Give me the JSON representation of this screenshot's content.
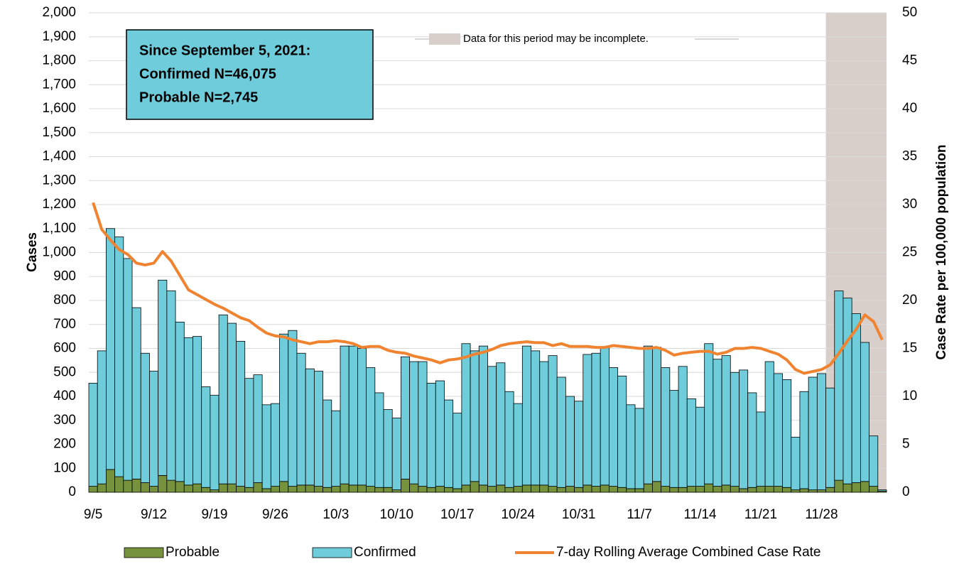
{
  "chart_data": {
    "type": "bar-line",
    "y_axis_label": "Cases",
    "y2_axis_label": "Case Rate per 100,000 population",
    "annotation": [
      "Since September 5, 2021:",
      "Confirmed N=46,075",
      "Probable N=2,745"
    ],
    "incomplete_region": {
      "label": "Data for this period may be incomplete.",
      "start": 85,
      "color": "#d9cfca"
    },
    "categories": [
      "9/5",
      null,
      null,
      null,
      null,
      null,
      null,
      "9/12",
      null,
      null,
      null,
      null,
      null,
      null,
      "9/19",
      null,
      null,
      null,
      null,
      null,
      null,
      "9/26",
      null,
      null,
      null,
      null,
      null,
      null,
      "10/3",
      null,
      null,
      null,
      null,
      null,
      null,
      "10/10",
      null,
      null,
      null,
      null,
      null,
      null,
      "10/17",
      null,
      null,
      null,
      null,
      null,
      null,
      "10/24",
      null,
      null,
      null,
      null,
      null,
      null,
      "10/31",
      null,
      null,
      null,
      null,
      null,
      null,
      "11/7",
      null,
      null,
      null,
      null,
      null,
      null,
      "11/14",
      null,
      null,
      null,
      null,
      null,
      null,
      "11/21",
      null,
      null,
      null,
      null,
      null,
      null,
      "11/28",
      null,
      null,
      null,
      null,
      null,
      null,
      null
    ],
    "series": [
      {
        "name": "Probable",
        "color": "#76923c",
        "stack": true,
        "values": [
          25,
          35,
          95,
          65,
          50,
          55,
          40,
          25,
          70,
          50,
          45,
          30,
          35,
          20,
          10,
          35,
          35,
          25,
          20,
          40,
          15,
          25,
          45,
          25,
          30,
          30,
          25,
          20,
          25,
          35,
          30,
          30,
          25,
          20,
          20,
          10,
          55,
          35,
          25,
          20,
          25,
          20,
          15,
          30,
          45,
          30,
          25,
          30,
          20,
          25,
          30,
          30,
          30,
          25,
          20,
          25,
          20,
          30,
          25,
          30,
          25,
          20,
          15,
          15,
          35,
          45,
          25,
          20,
          20,
          25,
          25,
          35,
          25,
          30,
          25,
          15,
          20,
          25,
          25,
          25,
          20,
          10,
          15,
          10,
          10,
          20,
          50,
          35,
          40,
          45,
          25,
          5
        ]
      },
      {
        "name": "Confirmed",
        "color": "#6fcddb",
        "stack": true,
        "values": [
          430,
          555,
          1005,
          1000,
          925,
          715,
          540,
          480,
          815,
          790,
          665,
          615,
          615,
          420,
          395,
          705,
          670,
          605,
          455,
          450,
          350,
          345,
          615,
          650,
          550,
          485,
          480,
          365,
          315,
          575,
          580,
          570,
          495,
          395,
          325,
          300,
          510,
          510,
          520,
          435,
          440,
          365,
          315,
          590,
          545,
          580,
          500,
          510,
          400,
          345,
          580,
          560,
          515,
          545,
          460,
          375,
          360,
          545,
          555,
          575,
          495,
          465,
          350,
          335,
          575,
          560,
          495,
          405,
          505,
          365,
          330,
          585,
          530,
          540,
          475,
          495,
          395,
          310,
          520,
          470,
          450,
          220,
          405,
          470,
          485,
          415,
          790,
          775,
          705,
          580,
          210,
          5
        ]
      },
      {
        "name": "7-day Rolling Average Combined Case Rate",
        "color": "#f0832f",
        "axis": "y2",
        "kind": "line",
        "values": [
          30.2,
          27.4,
          26.3,
          25.3,
          24.8,
          23.9,
          23.7,
          23.9,
          25.1,
          24.1,
          22.6,
          21.1,
          20.6,
          20.1,
          19.6,
          19.2,
          18.7,
          18.2,
          17.9,
          17.2,
          16.6,
          16.3,
          16.2,
          15.9,
          15.7,
          15.5,
          15.7,
          15.7,
          15.8,
          15.7,
          15.5,
          15.1,
          15.2,
          15.2,
          14.8,
          14.6,
          14.5,
          14.2,
          14.0,
          13.8,
          13.5,
          13.8,
          13.9,
          14.1,
          14.4,
          14.6,
          14.9,
          15.3,
          15.5,
          15.6,
          15.7,
          15.6,
          15.6,
          15.3,
          15.5,
          15.2,
          15.2,
          15.2,
          15.1,
          15.1,
          15.3,
          15.2,
          15.1,
          15.0,
          15.0,
          15.1,
          14.8,
          14.3,
          14.5,
          14.6,
          14.7,
          14.7,
          14.4,
          14.6,
          15.0,
          15.0,
          15.1,
          15.0,
          14.7,
          14.4,
          13.8,
          12.8,
          12.4,
          12.6,
          12.8,
          13.3,
          14.5,
          15.8,
          17.0,
          18.5,
          17.8,
          15.9
        ]
      }
    ],
    "ylim": [
      0,
      2000
    ],
    "yticks": [
      0,
      100,
      200,
      300,
      400,
      500,
      600,
      700,
      800,
      900,
      {
        "value": 1000,
        "label": "1,000"
      },
      {
        "value": 1100,
        "label": "1,100"
      },
      {
        "value": 1200,
        "label": "1,200"
      },
      {
        "value": 1300,
        "label": "1,300"
      },
      {
        "value": 1400,
        "label": "1,400"
      },
      {
        "value": 1500,
        "label": "1,500"
      },
      {
        "value": 1600,
        "label": "1,600"
      },
      {
        "value": 1700,
        "label": "1,700"
      },
      {
        "value": 1800,
        "label": "1,800"
      },
      {
        "value": 1900,
        "label": "1,900"
      },
      {
        "value": 2000,
        "label": "2,000"
      }
    ],
    "y2lim": [
      0,
      50
    ],
    "y2ticks": [
      0,
      5,
      10,
      15,
      20,
      25,
      30,
      35,
      40,
      45,
      50
    ],
    "grid": true,
    "legend": "bottom"
  }
}
